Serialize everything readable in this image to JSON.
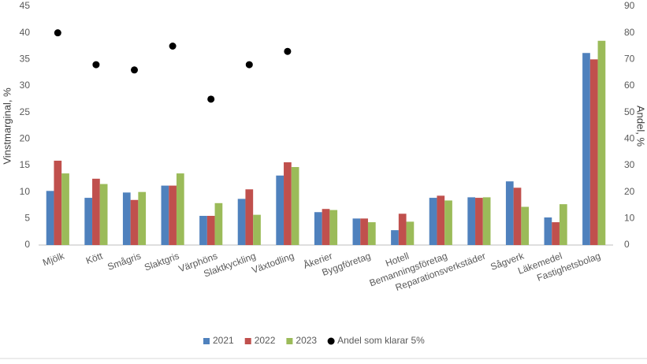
{
  "chart_data": {
    "type": "bar",
    "ylabel": "Vinstmarginal, %",
    "y2label": "Andel, %",
    "categories": [
      "Mjölk",
      "Kött",
      "Smågris",
      "Slaktgris",
      "Värphöns",
      "Slaktkyckling",
      "Växtodling",
      "Åkerier",
      "Byggföretag",
      "Hotell",
      "Bemanningsföretag",
      "Reparationsverkstäder",
      "Sågverk",
      "Läkemedel",
      "Fastighetsbolag"
    ],
    "series": [
      {
        "name": "2021",
        "type": "bar",
        "color": "#4f81bd",
        "values": [
          10.2,
          8.9,
          9.9,
          11.2,
          5.5,
          8.7,
          13.1,
          6.2,
          5.0,
          2.8,
          8.9,
          9.0,
          12.0,
          5.2,
          36.2
        ]
      },
      {
        "name": "2022",
        "type": "bar",
        "color": "#c0504d",
        "values": [
          15.9,
          12.5,
          8.5,
          11.2,
          5.5,
          10.5,
          15.6,
          6.8,
          5.0,
          5.9,
          9.3,
          8.9,
          10.8,
          4.3,
          35.0
        ]
      },
      {
        "name": "2023",
        "type": "bar",
        "color": "#9bbb59",
        "values": [
          13.5,
          11.5,
          10.0,
          13.5,
          7.9,
          5.7,
          14.7,
          6.6,
          4.3,
          4.4,
          8.4,
          9.0,
          7.2,
          7.7,
          38.5
        ]
      },
      {
        "name": "Andel som klarar 5%",
        "type": "scatter",
        "axis": "y2",
        "color": "#000000",
        "values": [
          80,
          68,
          66,
          75,
          55,
          68,
          73,
          null,
          null,
          null,
          null,
          null,
          null,
          null,
          null
        ]
      }
    ],
    "ylim": [
      0,
      45
    ],
    "yticks": [
      0,
      5,
      10,
      15,
      20,
      25,
      30,
      35,
      40,
      45
    ],
    "y2lim": [
      0,
      90
    ],
    "y2ticks": [
      0,
      10,
      20,
      30,
      40,
      50,
      60,
      70,
      80,
      90
    ],
    "legend": "bottom"
  }
}
